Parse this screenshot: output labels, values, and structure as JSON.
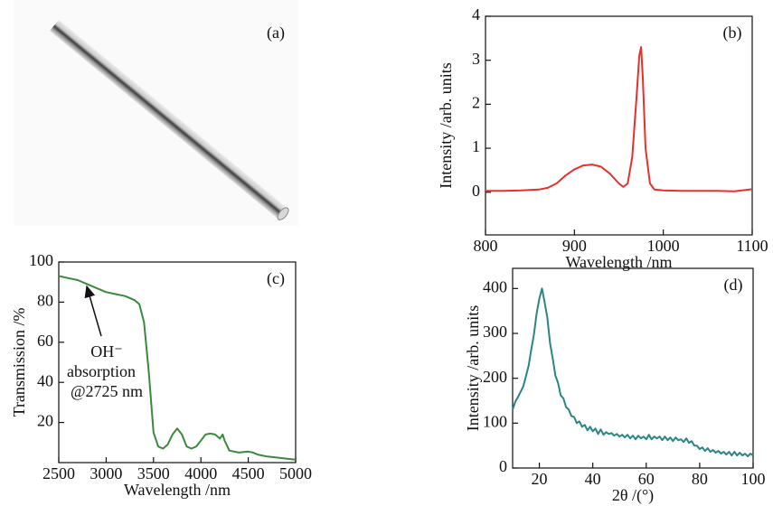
{
  "chart_data": [
    {
      "type": "image",
      "label": "(a)"
    },
    {
      "type": "line",
      "label": "(b)",
      "x_label": "Wavelength /nm",
      "y_label": "Intensity /arb. units",
      "xlim": [
        800,
        1100
      ],
      "xticks": [
        800,
        900,
        1000,
        1100
      ],
      "ylim": [
        -0.97,
        4
      ],
      "yticks": [
        0,
        1,
        2,
        3,
        4
      ],
      "color": "#e8302a",
      "x": [
        800,
        820,
        840,
        860,
        870,
        880,
        890,
        900,
        910,
        920,
        930,
        940,
        950,
        955,
        960,
        965,
        970,
        973,
        975,
        977,
        980,
        985,
        990,
        1000,
        1020,
        1040,
        1060,
        1080,
        1100
      ],
      "values": [
        0.03,
        0.03,
        0.04,
        0.06,
        0.1,
        0.2,
        0.38,
        0.52,
        0.61,
        0.63,
        0.58,
        0.42,
        0.2,
        0.12,
        0.2,
        0.8,
        2.2,
        3.1,
        3.3,
        2.6,
        1.0,
        0.2,
        0.06,
        0.04,
        0.03,
        0.03,
        0.03,
        0.02,
        0.07
      ]
    },
    {
      "type": "line",
      "label": "(c)",
      "x_label": "Wavelength /nm",
      "y_label": "Transmission /%",
      "xlim": [
        2500,
        5000
      ],
      "xticks": [
        2500,
        3000,
        3500,
        4000,
        4500,
        5000
      ],
      "ylim": [
        0,
        100
      ],
      "yticks": [
        20,
        40,
        60,
        80,
        100
      ],
      "color": "#3a8a3e",
      "annotation": [
        "OH⁻",
        "absorption",
        "@2725 nm"
      ],
      "x": [
        2500,
        2600,
        2700,
        2800,
        2900,
        3000,
        3100,
        3200,
        3300,
        3350,
        3400,
        3450,
        3500,
        3550,
        3600,
        3650,
        3700,
        3750,
        3800,
        3850,
        3900,
        3950,
        4000,
        4050,
        4100,
        4150,
        4200,
        4230,
        4250,
        4300,
        4400,
        4500,
        4550,
        4600,
        4700,
        4800,
        4900,
        5000
      ],
      "values": [
        93,
        92,
        91,
        89,
        87,
        85,
        84,
        83,
        81,
        79,
        70,
        45,
        15,
        8,
        7,
        9,
        14,
        17,
        14,
        8,
        7,
        8,
        11,
        14,
        14.5,
        14,
        12,
        14,
        11,
        6,
        5,
        5.5,
        5,
        4,
        3,
        2.5,
        2,
        1.5
      ]
    },
    {
      "type": "line",
      "label": "(d)",
      "x_label": "2θ /(°)",
      "y_label": "Intensity /arb. units",
      "xlim": [
        10,
        100
      ],
      "xticks": [
        20,
        40,
        60,
        80,
        100
      ],
      "ylim": [
        0,
        445
      ],
      "yticks": [
        0,
        100,
        200,
        300,
        400
      ],
      "color": "#2a8585",
      "x": [
        10,
        11,
        12,
        13,
        14,
        15,
        16,
        17,
        18,
        19,
        20,
        21,
        22,
        23,
        24,
        25,
        26,
        27,
        28,
        29,
        30,
        31,
        32,
        33,
        34,
        35,
        36,
        37,
        38,
        39,
        40,
        41,
        42,
        43,
        44,
        45,
        46,
        47,
        48,
        49,
        50,
        51,
        52,
        53,
        54,
        55,
        56,
        57,
        58,
        59,
        60,
        61,
        62,
        63,
        64,
        65,
        66,
        67,
        68,
        69,
        70,
        71,
        72,
        73,
        74,
        75,
        76,
        77,
        78,
        79,
        80,
        81,
        82,
        83,
        84,
        85,
        86,
        87,
        88,
        89,
        90,
        91,
        92,
        93,
        94,
        95,
        96,
        97,
        98,
        99,
        100
      ],
      "values": [
        130,
        148,
        158,
        170,
        182,
        205,
        228,
        265,
        298,
        345,
        378,
        400,
        368,
        335,
        278,
        245,
        206,
        190,
        162,
        155,
        136,
        130,
        116,
        114,
        100,
        104,
        92,
        96,
        84,
        92,
        82,
        88,
        76,
        86,
        74,
        80,
        76,
        78,
        72,
        76,
        70,
        74,
        68,
        74,
        66,
        72,
        64,
        72,
        66,
        70,
        64,
        74,
        64,
        70,
        66,
        70,
        62,
        70,
        62,
        68,
        60,
        68,
        62,
        64,
        58,
        66,
        56,
        60,
        50,
        50,
        42,
        46,
        38,
        44,
        36,
        40,
        34,
        38,
        32,
        36,
        30,
        36,
        28,
        36,
        28,
        34,
        28,
        32,
        26,
        32,
        28
      ]
    }
  ]
}
